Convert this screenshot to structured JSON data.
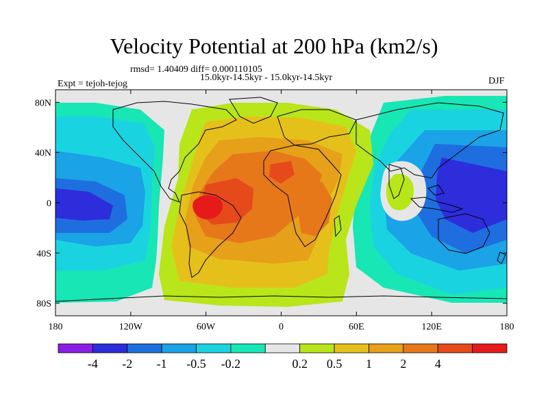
{
  "title": "Velocity Potential at 200 hPa (km2/s)",
  "stats": "rmsd= 1.40409 diff= 0.000110105",
  "experiment": "Expt = tejoh-tejog",
  "period": "15.0kyr-14.5kyr - 15.0kyr-14.5kyr",
  "season": "DJF",
  "axes": {
    "x_ticks": [
      {
        "lon": -180,
        "label": "180"
      },
      {
        "lon": -120,
        "label": "120W"
      },
      {
        "lon": -60,
        "label": "60W"
      },
      {
        "lon": 0,
        "label": "0"
      },
      {
        "lon": 60,
        "label": "60E"
      },
      {
        "lon": 120,
        "label": "120E"
      },
      {
        "lon": 180,
        "label": "180"
      }
    ],
    "y_ticks": [
      {
        "lat": 80,
        "label": "80N"
      },
      {
        "lat": 40,
        "label": "40N"
      },
      {
        "lat": 0,
        "label": "0"
      },
      {
        "lat": -40,
        "label": "40S"
      },
      {
        "lat": -80,
        "label": "80S"
      }
    ]
  },
  "colorbar": {
    "colors": [
      "#8a1ee6",
      "#2d2ddc",
      "#1f6ee0",
      "#1aa3e6",
      "#1ad3e0",
      "#18e6b5",
      "#e6e6e6",
      "#b8e61a",
      "#e6c01a",
      "#e6a01a",
      "#e6781a",
      "#e64a1a",
      "#e61a1a"
    ],
    "labels": [
      "-4",
      "-2",
      "-1",
      "-0.5",
      "-0.2",
      "0.2",
      "0.5",
      "1",
      "2",
      "4"
    ],
    "label_boundaries": [
      1,
      2,
      3,
      4,
      5,
      7,
      8,
      9,
      10,
      11
    ]
  }
}
